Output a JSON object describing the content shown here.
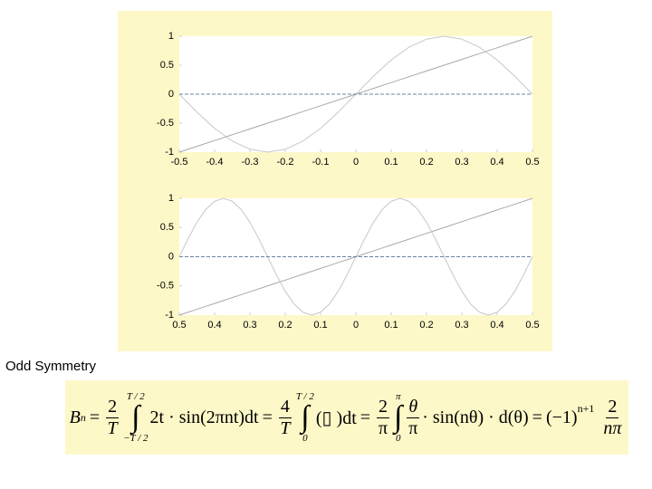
{
  "chart_data": [
    {
      "type": "line",
      "x": [
        -0.5,
        -0.45,
        -0.4,
        -0.35,
        -0.3,
        -0.25,
        -0.2,
        -0.15,
        -0.1,
        -0.05,
        0,
        0.05,
        0.1,
        0.15,
        0.2,
        0.25,
        0.3,
        0.35,
        0.4,
        0.45,
        0.5
      ],
      "series": [
        {
          "color": "#a9a9a9",
          "linestyle": "solid",
          "values": [
            -1,
            -0.9,
            -0.8,
            -0.7,
            -0.6,
            -0.5,
            -0.4,
            -0.3,
            -0.2,
            -0.1,
            0,
            0.1,
            0.2,
            0.3,
            0.4,
            0.5,
            0.6,
            0.7,
            0.8,
            0.9,
            1
          ]
        },
        {
          "color": "#c8c8c8",
          "linestyle": "solid",
          "values": [
            0,
            -0.31,
            -0.59,
            -0.81,
            -0.95,
            -1,
            -0.95,
            -0.81,
            -0.59,
            -0.31,
            0,
            0.31,
            0.59,
            0.81,
            0.95,
            1,
            0.95,
            0.81,
            0.59,
            0.31,
            0
          ]
        },
        {
          "color": "#6f7fa6",
          "linestyle": "dashed",
          "values": [
            0,
            0,
            0,
            0,
            0,
            0,
            0,
            0,
            0,
            0,
            0,
            0,
            0,
            0,
            0,
            0,
            0,
            0,
            0,
            0,
            0
          ]
        }
      ],
      "xlim": [
        -0.5,
        0.5
      ],
      "xticks": [
        -0.5,
        -0.4,
        -0.3,
        -0.2,
        -0.1,
        0,
        0.1,
        0.2,
        0.3,
        0.4,
        0.5
      ],
      "ylim": [
        -1,
        1
      ],
      "yticks": [
        -1,
        -0.5,
        0,
        0.5,
        1
      ]
    },
    {
      "type": "line",
      "x": [
        -0.5,
        -0.475,
        -0.45,
        -0.425,
        -0.4,
        -0.375,
        -0.35,
        -0.325,
        -0.3,
        -0.275,
        -0.25,
        -0.225,
        -0.2,
        -0.175,
        -0.15,
        -0.125,
        -0.1,
        -0.075,
        -0.05,
        -0.025,
        0,
        0.025,
        0.05,
        0.075,
        0.1,
        0.125,
        0.15,
        0.175,
        0.2,
        0.225,
        0.25,
        0.275,
        0.3,
        0.325,
        0.35,
        0.375,
        0.4,
        0.425,
        0.45,
        0.475,
        0.5
      ],
      "series": [
        {
          "color": "#a9a9a9",
          "linestyle": "solid",
          "values": [
            -1,
            -0.95,
            -0.9,
            -0.85,
            -0.8,
            -0.75,
            -0.7,
            -0.65,
            -0.6,
            -0.55,
            -0.5,
            -0.45,
            -0.4,
            -0.35,
            -0.3,
            -0.25,
            -0.2,
            -0.15,
            -0.1,
            -0.05,
            0,
            0.05,
            0.1,
            0.15,
            0.2,
            0.25,
            0.3,
            0.35,
            0.4,
            0.45,
            0.5,
            0.55,
            0.6,
            0.65,
            0.7,
            0.75,
            0.8,
            0.85,
            0.9,
            0.95,
            1
          ]
        },
        {
          "color": "#c8c8c8",
          "linestyle": "solid",
          "values": [
            0,
            0.31,
            0.59,
            0.81,
            0.95,
            1,
            0.95,
            0.81,
            0.59,
            0.31,
            0,
            -0.31,
            -0.59,
            -0.81,
            -0.95,
            -1,
            -0.95,
            -0.81,
            -0.59,
            -0.31,
            0,
            0.31,
            0.59,
            0.81,
            0.95,
            1,
            0.95,
            0.81,
            0.59,
            0.31,
            0,
            -0.31,
            -0.59,
            -0.81,
            -0.95,
            -1,
            -0.95,
            -0.81,
            -0.59,
            -0.31,
            0
          ]
        },
        {
          "color": "#6f7fa6",
          "linestyle": "dashed",
          "values": [
            0,
            0,
            0,
            0,
            0,
            0,
            0,
            0,
            0,
            0,
            0,
            0,
            0,
            0,
            0,
            0,
            0,
            0,
            0,
            0,
            0,
            0,
            0,
            0,
            0,
            0,
            0,
            0,
            0,
            0,
            0,
            0,
            0,
            0,
            0,
            0,
            0,
            0,
            0,
            0,
            0
          ]
        }
      ],
      "xlim": [
        -0.5,
        0.5
      ],
      "xticks": [
        {
          "value": -0.5,
          "label": "0.5"
        },
        {
          "value": -0.4,
          "label": "0.4"
        },
        {
          "value": -0.3,
          "label": "0.3"
        },
        {
          "value": -0.2,
          "label": "0.2"
        },
        {
          "value": -0.1,
          "label": "0.1"
        },
        0,
        0.1,
        0.2,
        0.3,
        0.4,
        0.5
      ],
      "ylim": [
        -1,
        1
      ],
      "yticks": [
        -1,
        -0.5,
        0,
        0.5,
        1
      ]
    }
  ],
  "caption": "Odd Symmetry",
  "equation": {
    "B": "B",
    "n": "n",
    "eq": "=",
    "two": "2",
    "four": "4",
    "T": "T",
    "upper": "T / 2",
    "lower": "−T / 2",
    "zero": "0",
    "pi": "π",
    "integrand1": "2t · sin(2πnt)dt",
    "integrand2": "(▯  )dt",
    "theta": "θ",
    "integrand3": "· sin(nθ) · d(θ)",
    "neg": "(−1)",
    "exp": "n+1",
    "npi": "nπ",
    "sign": "∫"
  }
}
